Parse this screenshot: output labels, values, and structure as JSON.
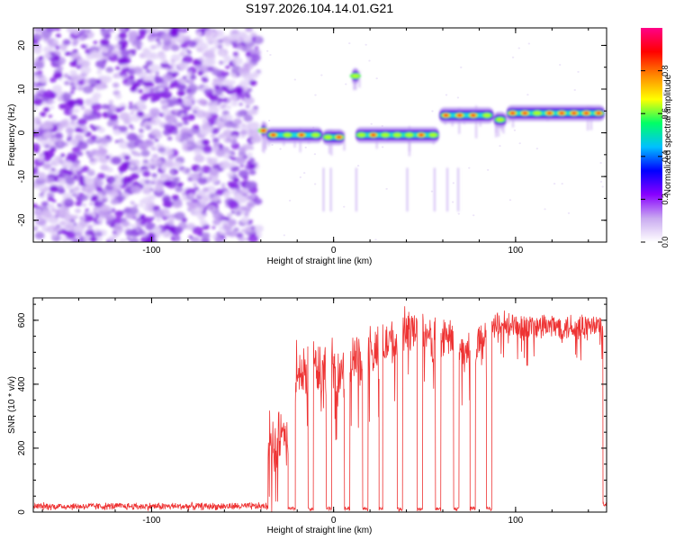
{
  "chart_data": [
    {
      "type": "heatmap",
      "title": "S197.2026.104.14.01.G21",
      "xlabel": "Height of straight line (km)",
      "ylabel": "Frequency (Hz)",
      "xlim": [
        -165,
        150
      ],
      "ylim": [
        -25,
        24
      ],
      "xticks": [
        -100,
        0,
        100
      ],
      "xtick_labels": [
        "-100",
        "0",
        "100"
      ],
      "yticks": [
        20,
        10,
        0,
        -10,
        -20
      ],
      "ytick_labels": [
        "20",
        "10",
        "0",
        "-10",
        "-20"
      ],
      "noise_region_x": [
        -165,
        -41
      ],
      "signal_track": [
        {
          "x": [
            -40,
            -37
          ],
          "freq": 0.5
        },
        {
          "x": [
            -37,
            -6
          ],
          "freq": -0.5
        },
        {
          "x": [
            -6,
            6
          ],
          "freq": -1
        },
        {
          "x": [
            10,
            14
          ],
          "freq": 13
        },
        {
          "x": [
            12,
            58
          ],
          "freq": -0.5
        },
        {
          "x": [
            58,
            88
          ],
          "freq": 4
        },
        {
          "x": [
            88,
            95
          ],
          "freq": 3
        },
        {
          "x": [
            95,
            149
          ],
          "freq": 4.5
        }
      ],
      "colorbar": {
        "label": "Normalized spectral amplitude",
        "range": [
          0,
          1
        ],
        "ticks": [
          0.0,
          0.2,
          0.4,
          0.6,
          0.8
        ],
        "tick_labels": [
          "0.0",
          "0.2",
          "0.4",
          "0.6",
          "0.8"
        ],
        "colors": [
          "#ffffff",
          "#c9aaf0",
          "#8800ff",
          "#0000ff",
          "#00c0ff",
          "#00ff66",
          "#ffff00",
          "#ff8800",
          "#ff0000",
          "#ff0088"
        ]
      },
      "grid": false
    },
    {
      "type": "line",
      "xlabel": "Height of straight line (km)",
      "ylabel": "SNR (10 * v/v)",
      "xlim": [
        -165,
        150
      ],
      "ylim": [
        0,
        670
      ],
      "xticks": [
        -100,
        0,
        100
      ],
      "xtick_labels": [
        "-100",
        "0",
        "100"
      ],
      "yticks": [
        0,
        200,
        400,
        600
      ],
      "ytick_labels": [
        "0",
        "200",
        "400",
        "600"
      ],
      "color": "#ee3333",
      "series": [
        {
          "name": "SNR",
          "segments": [
            {
              "x": [
                -165,
                -36
              ],
              "level": 18,
              "jitter": 14
            },
            {
              "x": [
                -36,
                -25
              ],
              "level": 220,
              "jitter": 120
            },
            {
              "x": [
                -25,
                -21
              ],
              "level": 10,
              "jitter": 8
            },
            {
              "x": [
                -21,
                -14
              ],
              "level": 430,
              "jitter": 120
            },
            {
              "x": [
                -14,
                -11
              ],
              "level": 10,
              "jitter": 8
            },
            {
              "x": [
                -11,
                -4
              ],
              "level": 450,
              "jitter": 110
            },
            {
              "x": [
                -4,
                -1
              ],
              "level": 10,
              "jitter": 8
            },
            {
              "x": [
                -1,
                6
              ],
              "level": 440,
              "jitter": 110
            },
            {
              "x": [
                6,
                9
              ],
              "level": 10,
              "jitter": 8
            },
            {
              "x": [
                9,
                16
              ],
              "level": 480,
              "jitter": 100
            },
            {
              "x": [
                16,
                19
              ],
              "level": 10,
              "jitter": 8
            },
            {
              "x": [
                19,
                25
              ],
              "level": 500,
              "jitter": 100
            },
            {
              "x": [
                25,
                27
              ],
              "level": 10,
              "jitter": 8
            },
            {
              "x": [
                27,
                35
              ],
              "level": 530,
              "jitter": 90
            },
            {
              "x": [
                35,
                38
              ],
              "level": 10,
              "jitter": 8
            },
            {
              "x": [
                38,
                46
              ],
              "level": 570,
              "jitter": 80
            },
            {
              "x": [
                46,
                49
              ],
              "level": 10,
              "jitter": 8
            },
            {
              "x": [
                49,
                56
              ],
              "level": 540,
              "jitter": 90
            },
            {
              "x": [
                56,
                59
              ],
              "level": 10,
              "jitter": 8
            },
            {
              "x": [
                59,
                66
              ],
              "level": 540,
              "jitter": 90
            },
            {
              "x": [
                66,
                69
              ],
              "level": 10,
              "jitter": 8
            },
            {
              "x": [
                69,
                75
              ],
              "level": 500,
              "jitter": 80
            },
            {
              "x": [
                75,
                78
              ],
              "level": 10,
              "jitter": 8
            },
            {
              "x": [
                78,
                84
              ],
              "level": 530,
              "jitter": 80
            },
            {
              "x": [
                84,
                87
              ],
              "level": 10,
              "jitter": 8
            },
            {
              "x": [
                87,
                148
              ],
              "level": 580,
              "jitter": 55
            },
            {
              "x": [
                148,
                150
              ],
              "level": 25,
              "jitter": 10
            }
          ]
        }
      ],
      "grid": false
    }
  ]
}
